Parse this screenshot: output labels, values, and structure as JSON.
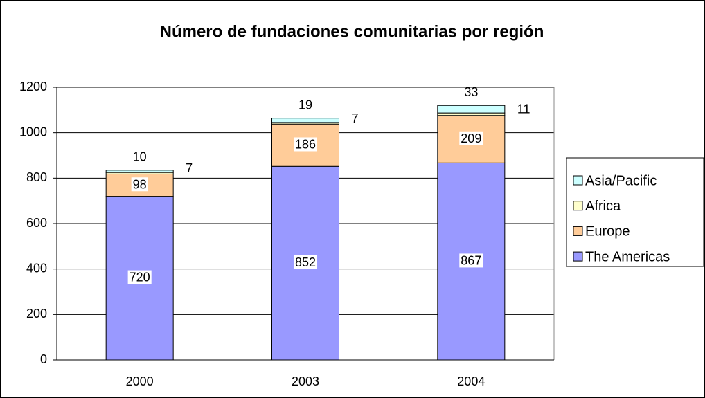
{
  "chart_data": {
    "type": "stacked_bar",
    "title": "Número de fundaciones comunitarias por región",
    "categories": [
      "2000",
      "2003",
      "2004"
    ],
    "series": [
      {
        "name": "The Americas",
        "color": "#9999ff",
        "values": [
          720,
          852,
          867
        ]
      },
      {
        "name": "Europe",
        "color": "#ffcc99",
        "values": [
          98,
          186,
          209
        ]
      },
      {
        "name": "Africa",
        "color": "#ffffcc",
        "values": [
          7,
          7,
          11
        ]
      },
      {
        "name": "Asia/Pacific",
        "color": "#ccffff",
        "values": [
          10,
          19,
          33
        ]
      }
    ],
    "ylim": [
      0,
      1200
    ],
    "yticks": [
      0,
      200,
      400,
      600,
      800,
      1000,
      1200
    ],
    "grid": true,
    "legend": "right"
  }
}
